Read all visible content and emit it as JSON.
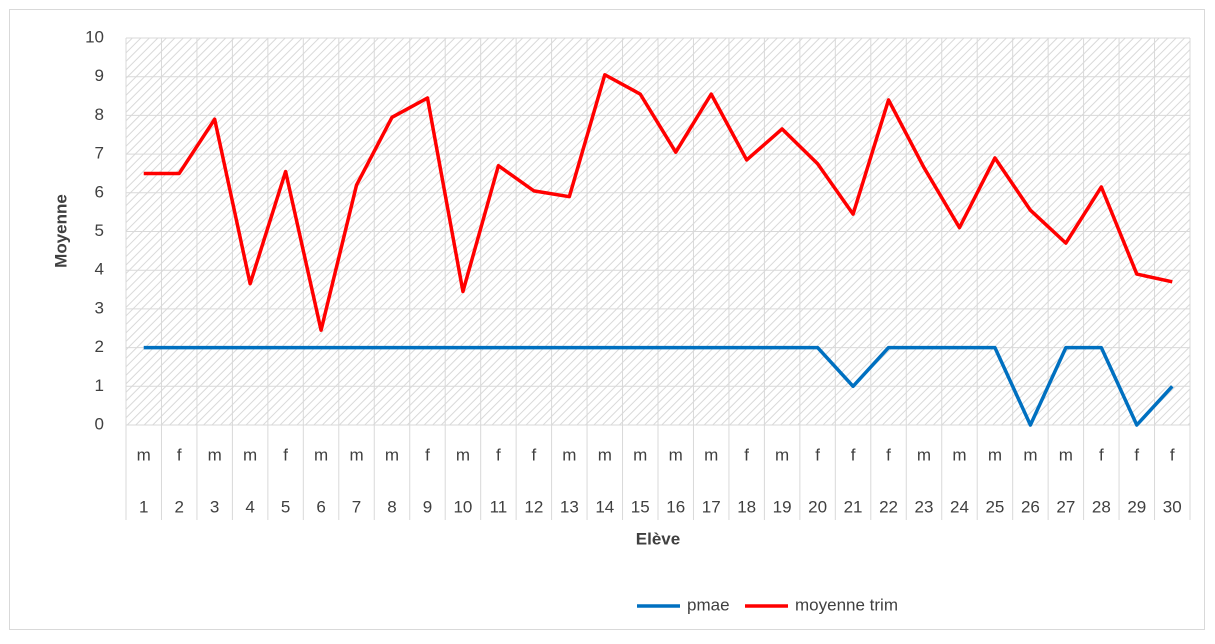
{
  "chart_data": {
    "type": "line",
    "x_label": "Elève",
    "y_label": "Moyenne",
    "categories": [
      1,
      2,
      3,
      4,
      5,
      6,
      7,
      8,
      9,
      10,
      11,
      12,
      13,
      14,
      15,
      16,
      17,
      18,
      19,
      20,
      21,
      22,
      23,
      24,
      25,
      26,
      27,
      28,
      29,
      30
    ],
    "subcategories": [
      "m",
      "f",
      "m",
      "m",
      "f",
      "m",
      "m",
      "m",
      "f",
      "m",
      "f",
      "f",
      "m",
      "m",
      "m",
      "m",
      "m",
      "f",
      "m",
      "f",
      "f",
      "f",
      "m",
      "m",
      "m",
      "m",
      "m",
      "f",
      "f",
      "f"
    ],
    "series": [
      {
        "name": "pmae",
        "color": "#0070c0",
        "values": [
          2,
          2,
          2,
          2,
          2,
          2,
          2,
          2,
          2,
          2,
          2,
          2,
          2,
          2,
          2,
          2,
          2,
          2,
          2,
          2,
          1,
          2,
          2,
          2,
          2,
          0,
          2,
          2,
          0,
          1
        ]
      },
      {
        "name": "moyenne trim",
        "color": "#ff0000",
        "values": [
          6.5,
          6.5,
          7.9,
          3.65,
          6.55,
          2.45,
          6.2,
          7.95,
          8.45,
          3.45,
          6.7,
          6.05,
          5.9,
          9.05,
          8.55,
          7.05,
          8.55,
          6.85,
          7.65,
          6.75,
          5.45,
          8.4,
          6.65,
          5.1,
          6.9,
          5.55,
          4.7,
          6.15,
          3.9,
          3.7
        ]
      }
    ],
    "ylim": [
      0,
      10
    ],
    "yticks": [
      0,
      1,
      2,
      3,
      4,
      5,
      6,
      7,
      8,
      9,
      10
    ],
    "grid": true,
    "legend": "bottom"
  }
}
